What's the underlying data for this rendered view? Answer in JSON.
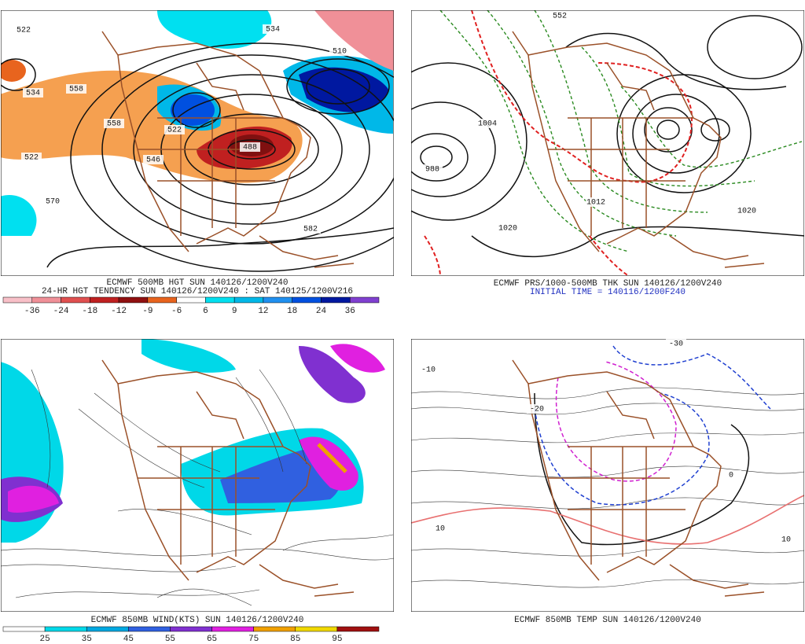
{
  "panels": [
    {
      "caption": [
        "ECMWF 500MB HGT SUN 140126/1200V240",
        "24-HR HGT TENDENCY SUN 140126/1200V240 : SAT 140125/1200V216"
      ],
      "colorbar": {
        "labels": [
          -36,
          -24,
          -18,
          -12,
          -9,
          -6,
          6,
          9,
          12,
          18,
          24,
          36
        ],
        "colors": [
          "#f8c0c8",
          "#f09098",
          "#e05050",
          "#c02020",
          "#901010",
          "#e8641e",
          "#ffffff",
          "#00e0f0",
          "#00b8e8",
          "#2090f0",
          "#0050e0",
          "#0018a0",
          "#8040d0"
        ]
      },
      "contour_labels": [
        522,
        534,
        558,
        558,
        522,
        546,
        488,
        522,
        570,
        582,
        510,
        534
      ]
    },
    {
      "caption": [
        "ECMWF PRS/1000-500MB THK SUN 140126/1200V240"
      ],
      "subcaption": "INITIAL TIME = 140116/1200F240",
      "contour_labels": [
        1004,
        1020,
        1012,
        1020,
        988,
        552
      ]
    },
    {
      "caption": [
        "ECMWF 850MB WIND(KTS) SUN 140126/1200V240"
      ],
      "colorbar": {
        "labels": [
          25,
          35,
          45,
          55,
          65,
          75,
          85,
          95
        ],
        "colors": [
          "#ffffff",
          "#00d8e8",
          "#00a8e0",
          "#3060e0",
          "#8030d0",
          "#e020e0",
          "#f0a000",
          "#f0d800",
          "#a01010"
        ]
      }
    },
    {
      "caption": [
        "ECMWF 850MB TEMP SUN 140126/1200V240"
      ],
      "contour_labels": [
        -10,
        -20,
        -30,
        10,
        10,
        0
      ]
    }
  ]
}
